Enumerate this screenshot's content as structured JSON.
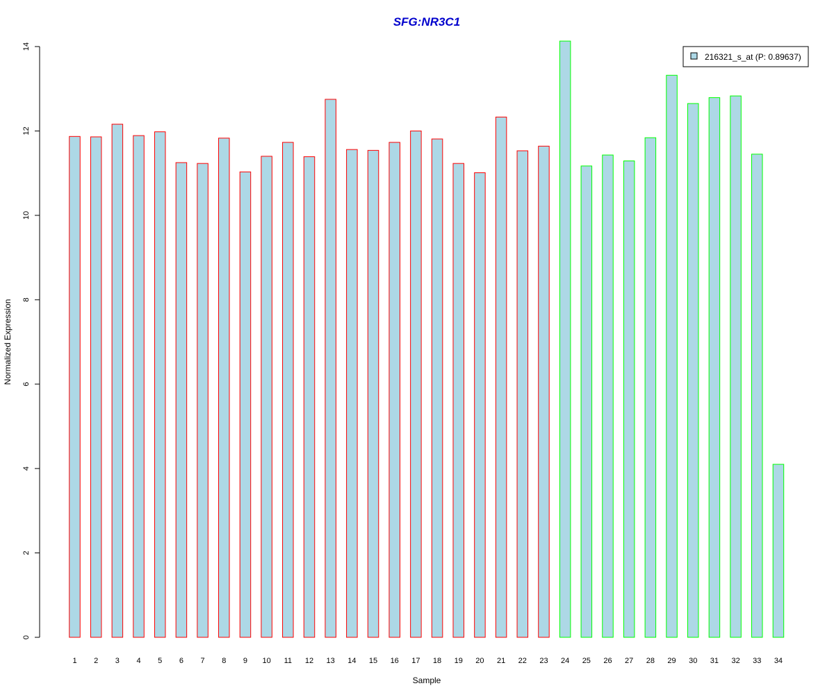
{
  "chart_data": {
    "type": "bar",
    "title": "SFG:NR3C1",
    "xlabel": "Sample",
    "ylabel": "Normalized Expression",
    "ylim": [
      0,
      14
    ],
    "y_ticks": [
      "0",
      "2",
      "4",
      "6",
      "8",
      "10",
      "12",
      "14"
    ],
    "categories": [
      "1",
      "2",
      "3",
      "4",
      "5",
      "6",
      "7",
      "8",
      "9",
      "10",
      "11",
      "12",
      "13",
      "14",
      "15",
      "16",
      "17",
      "18",
      "19",
      "20",
      "21",
      "22",
      "23",
      "24",
      "25",
      "26",
      "27",
      "28",
      "29",
      "30",
      "31",
      "32",
      "33",
      "34"
    ],
    "series": [
      {
        "name": "216321_s_at (P: 0.89637)",
        "values": [
          11.87,
          11.86,
          12.16,
          11.89,
          11.98,
          11.25,
          11.23,
          11.83,
          11.03,
          11.4,
          11.73,
          11.39,
          12.75,
          11.56,
          11.54,
          11.73,
          12.0,
          11.81,
          11.23,
          11.01,
          12.33,
          11.53,
          11.64,
          14.13,
          11.17,
          11.43,
          11.29,
          11.84,
          13.32,
          12.65,
          12.79,
          12.83,
          11.45,
          4.1
        ]
      }
    ],
    "group_of_sample": [
      "red",
      "red",
      "red",
      "red",
      "red",
      "red",
      "red",
      "red",
      "red",
      "red",
      "red",
      "red",
      "red",
      "red",
      "red",
      "red",
      "red",
      "red",
      "red",
      "red",
      "red",
      "red",
      "red",
      "green",
      "green",
      "green",
      "green",
      "green",
      "green",
      "green",
      "green",
      "green",
      "green",
      "green"
    ],
    "legend_position": "top-right",
    "grid": false
  },
  "colors": {
    "bar_fill": "#add8e6",
    "red_border": "#ff0000",
    "green_border": "#00ff00",
    "title": "#0000cd",
    "axis": "#000000"
  }
}
